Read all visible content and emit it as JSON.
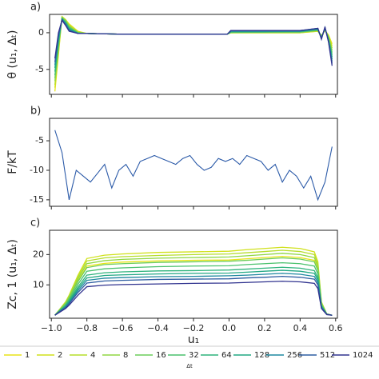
{
  "chart_data": [
    {
      "type": "line",
      "panel_label": "a)",
      "ylabel": "θ (u₁, Δₜ)",
      "x": [
        -0.98,
        -0.96,
        -0.94,
        -0.92,
        -0.9,
        -0.85,
        -0.8,
        -0.6,
        -0.4,
        -0.2,
        -0.01,
        0.01,
        0.2,
        0.4,
        0.5,
        0.52,
        0.54,
        0.56,
        0.58
      ],
      "xlim": [
        -1.01,
        0.61
      ],
      "ylim": [
        -8.4,
        2.5
      ],
      "yticks": [
        -5,
        0
      ],
      "series": [
        {
          "name": "1",
          "color": "#e8e419",
          "values": [
            -8,
            -3,
            2.2,
            1.8,
            1.2,
            0.2,
            -0.1,
            -0.2,
            -0.2,
            -0.2,
            -0.2,
            0,
            0,
            0,
            0.2,
            -0.5,
            0.3,
            -0.3,
            -1.5
          ]
        },
        {
          "name": "2",
          "color": "#d0e11c",
          "values": [
            -7.5,
            -2.7,
            2.2,
            1.8,
            1.1,
            0.1,
            -0.1,
            -0.2,
            -0.2,
            -0.2,
            -0.2,
            0,
            0,
            0,
            0.2,
            -0.4,
            0.3,
            -0.4,
            -1.8
          ]
        },
        {
          "name": "4",
          "color": "#b5de2b",
          "values": [
            -7.1,
            -2.4,
            2.1,
            1.7,
            1,
            0.1,
            -0.1,
            -0.2,
            -0.2,
            -0.2,
            -0.2,
            0,
            0,
            0,
            0.3,
            -0.4,
            0.4,
            -0.5,
            -2.1
          ]
        },
        {
          "name": "8",
          "color": "#90d743",
          "values": [
            -6.6,
            -2.1,
            2.1,
            1.7,
            0.9,
            0,
            -0.1,
            -0.2,
            -0.2,
            -0.2,
            -0.2,
            0,
            0.1,
            0.1,
            0.3,
            -0.5,
            0.4,
            -0.6,
            -2.4
          ]
        },
        {
          "name": "16",
          "color": "#6ccd5a",
          "values": [
            -6.2,
            -1.8,
            2,
            1.6,
            0.8,
            0,
            -0.1,
            -0.2,
            -0.2,
            -0.2,
            -0.2,
            0.1,
            0.1,
            0.1,
            0.3,
            -0.6,
            0.5,
            -0.7,
            -2.7
          ]
        },
        {
          "name": "32",
          "color": "#4ac16d",
          "values": [
            -5.8,
            -1.5,
            2,
            1.5,
            0.7,
            0,
            -0.1,
            -0.2,
            -0.2,
            -0.2,
            -0.2,
            0.1,
            0.1,
            0.1,
            0.4,
            -0.6,
            0.5,
            -0.8,
            -3
          ]
        },
        {
          "name": "64",
          "color": "#2fb47c",
          "values": [
            -5.3,
            -1.2,
            1.9,
            1.4,
            0.6,
            -0.1,
            -0.1,
            -0.2,
            -0.2,
            -0.2,
            -0.2,
            0.1,
            0.1,
            0.2,
            0.4,
            -0.7,
            0.6,
            -0.9,
            -3.3
          ]
        },
        {
          "name": "128",
          "color": "#22a884",
          "values": [
            -4.8,
            -0.9,
            1.9,
            1.3,
            0.5,
            -0.1,
            -0.1,
            -0.2,
            -0.2,
            -0.2,
            -0.2,
            0.2,
            0.2,
            0.2,
            0.5,
            -0.7,
            0.6,
            -1,
            -3.6
          ]
        },
        {
          "name": "256",
          "color": "#1f88a0",
          "values": [
            -4.4,
            -0.6,
            1.8,
            1.2,
            0.4,
            -0.1,
            -0.1,
            -0.2,
            -0.2,
            -0.2,
            -0.2,
            0.2,
            0.2,
            0.2,
            0.5,
            -0.8,
            0.7,
            -1.1,
            -3.9
          ]
        },
        {
          "name": "512",
          "color": "#2f5ea2",
          "values": [
            -4,
            -0.3,
            1.8,
            1.1,
            0.3,
            -0.1,
            -0.1,
            -0.2,
            -0.2,
            -0.2,
            -0.2,
            0.3,
            0.3,
            0.3,
            0.6,
            -0.8,
            0.7,
            -1.2,
            -4.2
          ]
        },
        {
          "name": "1024",
          "color": "#30338f",
          "values": [
            -3.5,
            0,
            1.7,
            1,
            0.2,
            -0.1,
            -0.1,
            -0.2,
            -0.2,
            -0.2,
            -0.2,
            0.3,
            0.3,
            0.3,
            0.6,
            -0.9,
            0.8,
            -1.3,
            -4.5
          ]
        }
      ]
    },
    {
      "type": "line",
      "panel_label": "b)",
      "ylabel": "F/kT",
      "x": [
        -0.98,
        -0.94,
        -0.9,
        -0.86,
        -0.82,
        -0.78,
        -0.74,
        -0.7,
        -0.66,
        -0.62,
        -0.58,
        -0.54,
        -0.5,
        -0.46,
        -0.42,
        -0.38,
        -0.34,
        -0.3,
        -0.26,
        -0.22,
        -0.18,
        -0.14,
        -0.1,
        -0.06,
        -0.02,
        0.02,
        0.06,
        0.1,
        0.14,
        0.18,
        0.22,
        0.26,
        0.3,
        0.34,
        0.38,
        0.42,
        0.46,
        0.5,
        0.54,
        0.58
      ],
      "xlim": [
        -1.01,
        0.61
      ],
      "ylim": [
        -16.1,
        -1.2
      ],
      "yticks": [
        -15,
        -10,
        -5
      ],
      "series": [
        {
          "color": "#2b5aa8",
          "values": [
            -3.2,
            -7,
            -15,
            -10,
            -11,
            -12,
            -10.5,
            -9,
            -13,
            -10,
            -9,
            -11,
            -8.5,
            -8,
            -7.5,
            -8,
            -8.5,
            -9,
            -8,
            -7.5,
            -9,
            -10,
            -9.5,
            -8,
            -8.5,
            -8,
            -9,
            -7.5,
            -8,
            -8.5,
            -10,
            -9,
            -12,
            -10,
            -11,
            -13,
            -11,
            -15,
            -12,
            -6
          ]
        }
      ]
    },
    {
      "type": "line",
      "panel_label": "c)",
      "ylabel": "Zc, 1 (u₁, Δₜ)",
      "xlabel": "u₁",
      "legend_title": "Δt",
      "x": [
        -0.98,
        -0.95,
        -0.92,
        -0.9,
        -0.85,
        -0.8,
        -0.7,
        -0.6,
        -0.4,
        -0.2,
        0,
        0.1,
        0.2,
        0.3,
        0.4,
        0.48,
        0.5,
        0.52,
        0.55,
        0.58
      ],
      "xlim": [
        -1.01,
        0.61
      ],
      "ylim": [
        -1,
        28
      ],
      "yticks": [
        10,
        20
      ],
      "xticks": [
        {
          "value": -1,
          "label": "−1.0"
        },
        {
          "value": -0.8,
          "label": "−0.8"
        },
        {
          "value": -0.6,
          "label": "−0.6"
        },
        {
          "value": -0.4,
          "label": "−0.4"
        },
        {
          "value": -0.2,
          "label": "−0.2"
        },
        {
          "value": 0,
          "label": "0.0"
        },
        0.2,
        0.4,
        0.6
      ],
      "series": [
        {
          "name": "1",
          "color": "#e8e419",
          "values": [
            0,
            1.9,
            3.8,
            5.7,
            11.4,
            16.2,
            17.1,
            17.5,
            17.9,
            18.1,
            18.2,
            18.6,
            19,
            19.4,
            19,
            18.1,
            15.2,
            3.8,
            0.4,
            0
          ]
        },
        {
          "name": "2",
          "color": "#d0e11c",
          "values": [
            0,
            2.2,
            4.4,
            6.6,
            13.2,
            18.7,
            19.8,
            20.2,
            20.7,
            20.9,
            21.1,
            21.6,
            22,
            22.4,
            22,
            20.9,
            17.6,
            4.4,
            0.4,
            0
          ]
        },
        {
          "name": "4",
          "color": "#b5de2b",
          "values": [
            0,
            2.1,
            4.2,
            6.3,
            12.6,
            17.9,
            18.9,
            19.3,
            19.7,
            20,
            20.2,
            20.6,
            21,
            21.4,
            21,
            20,
            16.8,
            4.2,
            0.4,
            0
          ]
        },
        {
          "name": "8",
          "color": "#90d743",
          "values": [
            0,
            2,
            4,
            6,
            12,
            17,
            18,
            18.4,
            18.8,
            19,
            19.2,
            19.6,
            20,
            20.4,
            20,
            19,
            16,
            4,
            0.4,
            0
          ]
        },
        {
          "name": "16",
          "color": "#6ccd5a",
          "values": [
            0,
            1.9,
            3.7,
            5.6,
            11.1,
            15.7,
            16.7,
            17,
            17.4,
            17.6,
            17.8,
            18.1,
            18.5,
            18.9,
            18.5,
            17.6,
            14.8,
            3.7,
            0.4,
            0
          ]
        },
        {
          "name": "32",
          "color": "#4ac16d",
          "values": [
            0,
            1.7,
            3.4,
            5.1,
            10.2,
            14.5,
            15.3,
            15.6,
            16,
            16.2,
            16.3,
            16.7,
            17,
            17.3,
            17,
            16.2,
            13.6,
            3.4,
            0.3,
            0
          ]
        },
        {
          "name": "64",
          "color": "#2fb47c",
          "values": [
            0,
            1.6,
            3.1,
            4.7,
            9.3,
            13.2,
            14,
            14.3,
            14.6,
            14.7,
            14.9,
            15.2,
            15.5,
            15.8,
            15.5,
            14.7,
            12.4,
            3.1,
            0.3,
            0
          ]
        },
        {
          "name": "128",
          "color": "#22a884",
          "values": [
            0,
            1.5,
            2.9,
            4.4,
            8.7,
            12.3,
            13.1,
            13.3,
            13.6,
            13.8,
            13.9,
            14.2,
            14.5,
            14.8,
            14.5,
            13.8,
            11.6,
            2.9,
            0.3,
            0
          ]
        },
        {
          "name": "256",
          "color": "#1f88a0",
          "values": [
            0,
            1.4,
            2.7,
            4.1,
            8.1,
            11.5,
            12.2,
            12.4,
            12.7,
            12.8,
            13,
            13.2,
            13.5,
            13.8,
            13.5,
            12.8,
            10.8,
            2.7,
            0.3,
            0
          ]
        },
        {
          "name": "512",
          "color": "#2f5ea2",
          "values": [
            0,
            1.3,
            2.5,
            3.8,
            7.5,
            10.6,
            11.3,
            11.5,
            11.8,
            11.9,
            12,
            12.3,
            12.5,
            12.8,
            12.5,
            11.9,
            10,
            2.5,
            0.3,
            0
          ]
        },
        {
          "name": "1024",
          "color": "#30338f",
          "values": [
            0,
            1.1,
            2.2,
            3.3,
            6.6,
            9.4,
            9.9,
            10.1,
            10.3,
            10.5,
            10.6,
            10.8,
            11,
            11.2,
            11,
            10.5,
            8.8,
            2.2,
            0.2,
            0
          ]
        }
      ]
    }
  ]
}
